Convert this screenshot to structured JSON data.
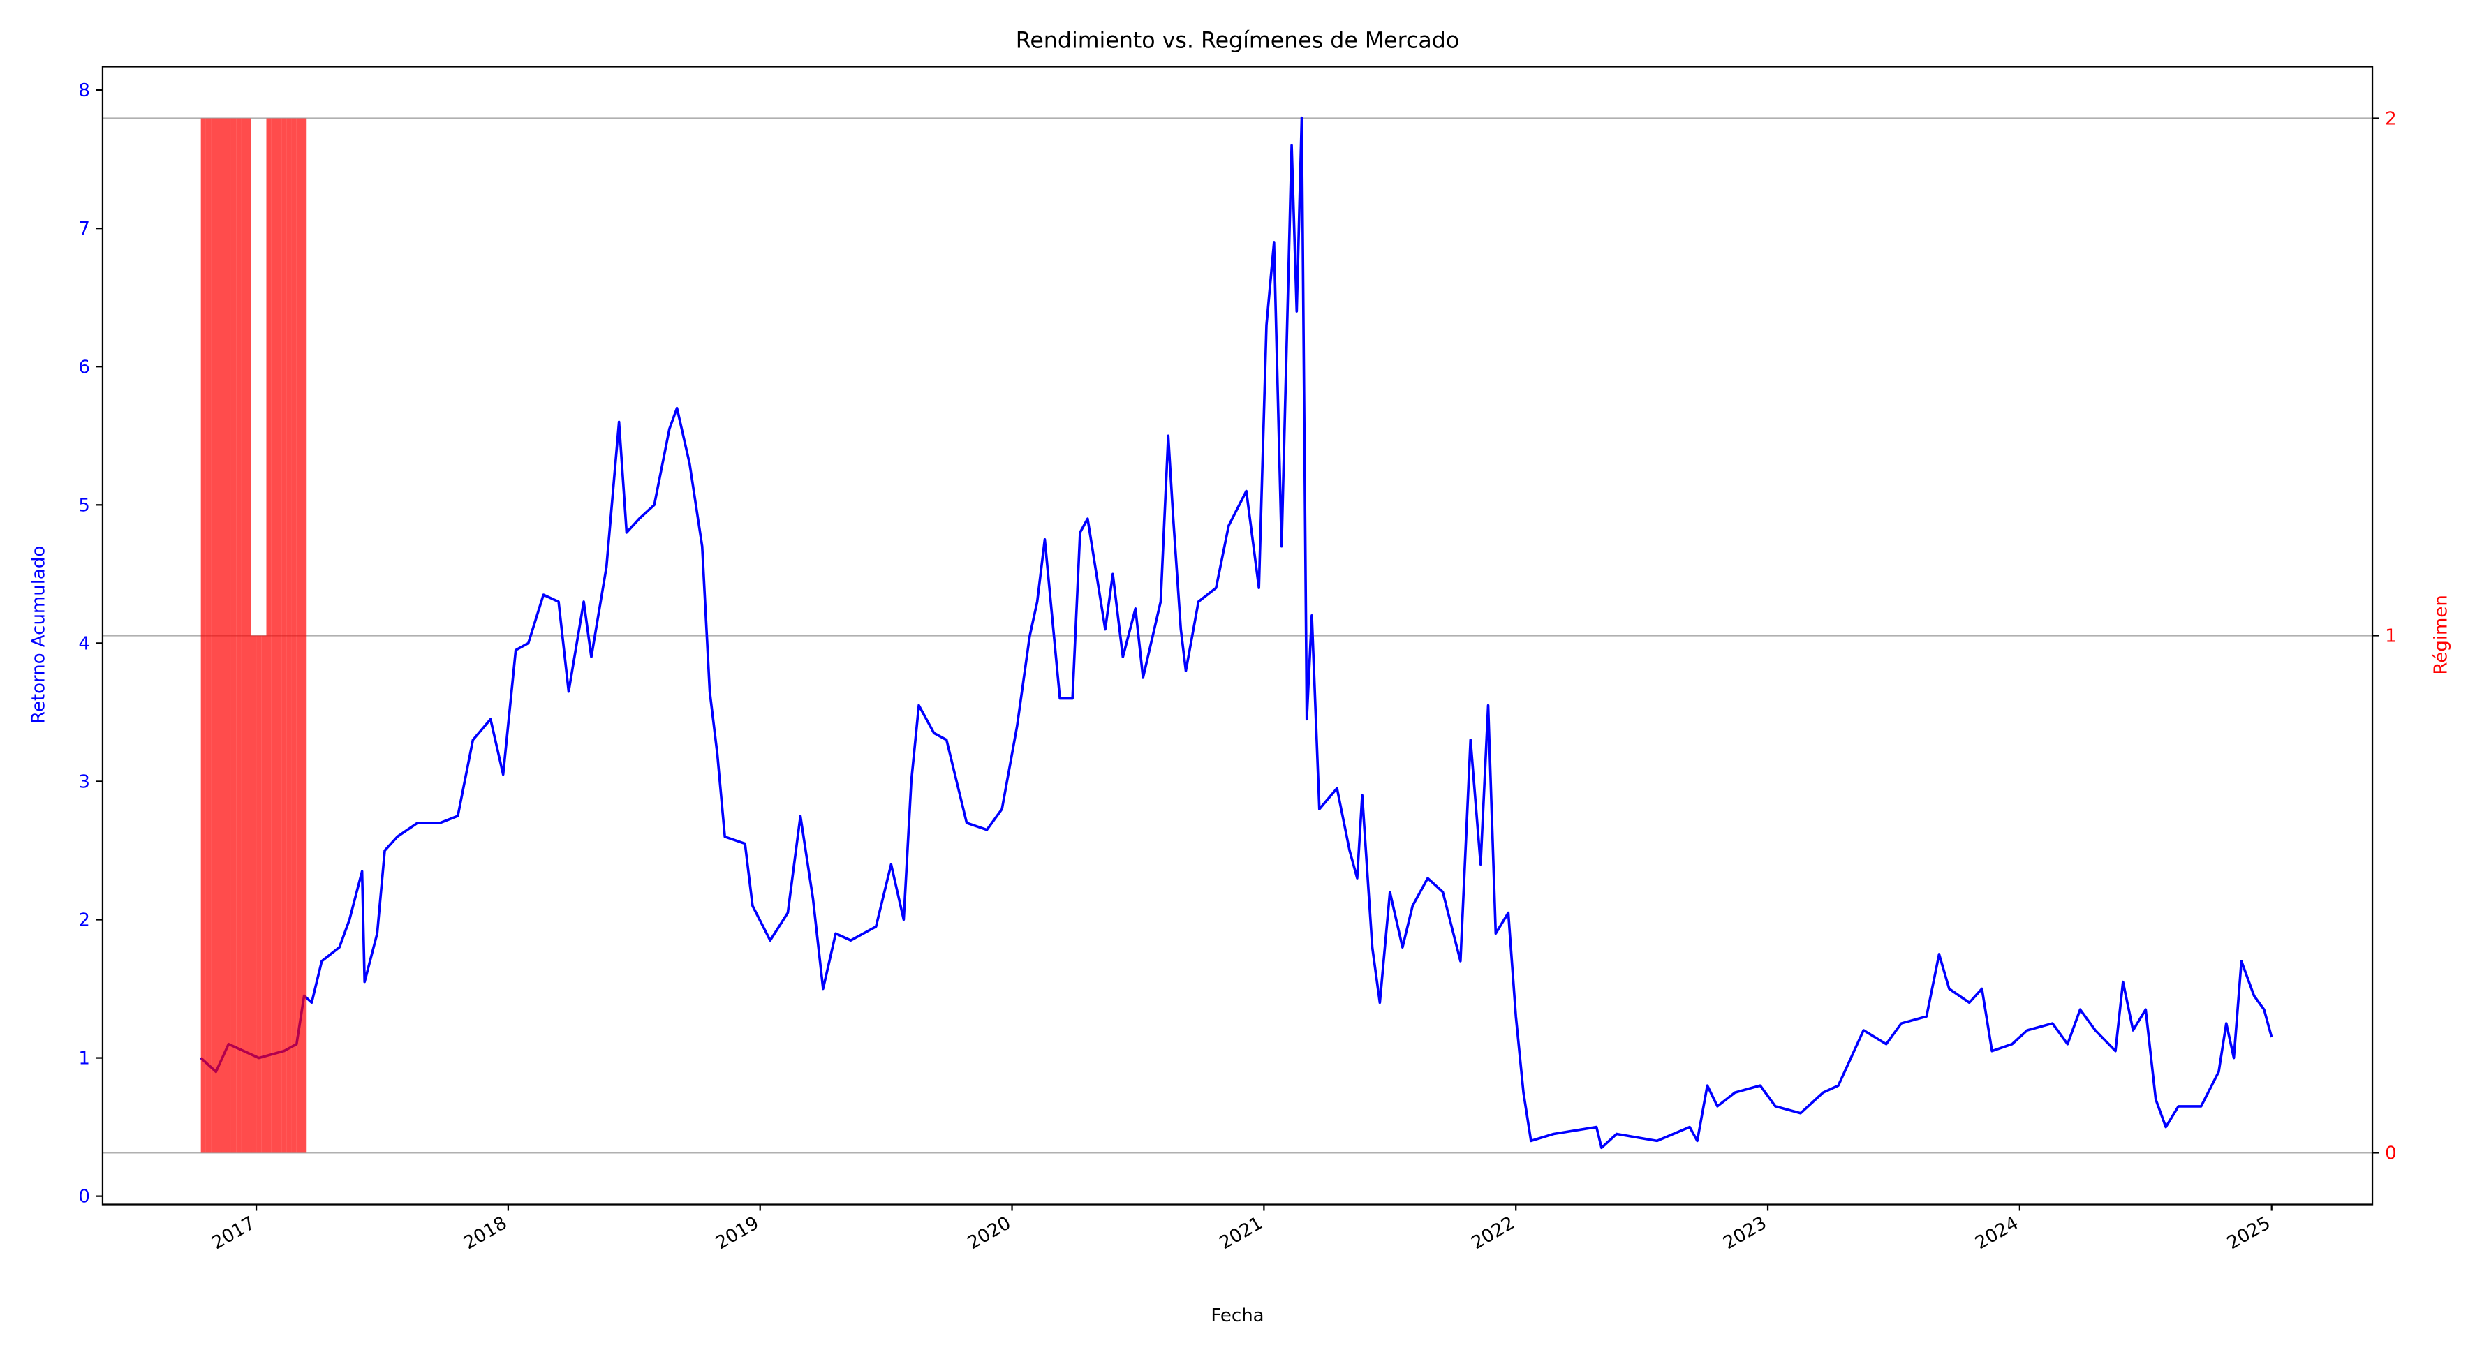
{
  "chart_data": {
    "type": "line",
    "title": "Rendimiento vs. Regímenes de Mercado",
    "x_label": "Fecha",
    "y_label": "Retorno Acumulado",
    "y2_label": "Régimen",
    "xlim": [
      2016.39,
      2025.4
    ],
    "xticks": [
      2017,
      2018,
      2019,
      2020,
      2021,
      2022,
      2023,
      2024,
      2025
    ],
    "ylim": [
      -0.06,
      8.17
    ],
    "yticks": [
      0,
      1,
      2,
      3,
      4,
      5,
      6,
      7,
      8
    ],
    "y2lim": [
      -0.1,
      2.1
    ],
    "y2ticks": [
      0,
      1,
      2
    ],
    "grid": "y2",
    "series": [
      {
        "name": "Retorno Acumulado",
        "type": "line",
        "color": "#0000ff",
        "x": [
          2016.78,
          2016.84,
          2016.89,
          2017.01,
          2017.11,
          2017.16,
          2017.19,
          2017.22,
          2017.26,
          2017.33,
          2017.37,
          2017.42,
          2017.43,
          2017.48,
          2017.51,
          2017.56,
          2017.64,
          2017.73,
          2017.8,
          2017.86,
          2017.93,
          2017.98,
          2018.03,
          2018.08,
          2018.14,
          2018.2,
          2018.24,
          2018.3,
          2018.33,
          2018.39,
          2018.44,
          2018.47,
          2018.52,
          2018.58,
          2018.64,
          2018.67,
          2018.72,
          2018.77,
          2018.8,
          2018.83,
          2018.86,
          2018.94,
          2018.97,
          2019.04,
          2019.11,
          2019.16,
          2019.21,
          2019.25,
          2019.3,
          2019.36,
          2019.46,
          2019.52,
          2019.57,
          2019.6,
          2019.63,
          2019.69,
          2019.74,
          2019.82,
          2019.9,
          2019.96,
          2020.02,
          2020.07,
          2020.1,
          2020.13,
          2020.19,
          2020.24,
          2020.27,
          2020.3,
          2020.37,
          2020.4,
          2020.44,
          2020.49,
          2020.52,
          2020.59,
          2020.62,
          2020.64,
          2020.67,
          2020.69,
          2020.74,
          2020.81,
          2020.86,
          2020.93,
          2020.98,
          2021.01,
          2021.04,
          2021.07,
          2021.11,
          2021.13,
          2021.15,
          2021.17,
          2021.19,
          2021.22,
          2021.29,
          2021.34,
          2021.37,
          2021.39,
          2021.43,
          2021.46,
          2021.5,
          2021.55,
          2021.59,
          2021.65,
          2021.71,
          2021.78,
          2021.82,
          2021.86,
          2021.89,
          2021.92,
          2021.97,
          2022.0,
          2022.03,
          2022.06,
          2022.15,
          2022.32,
          2022.34,
          2022.4,
          2022.56,
          2022.69,
          2022.72,
          2022.76,
          2022.8,
          2022.87,
          2022.97,
          2023.03,
          2023.13,
          2023.22,
          2023.28,
          2023.33,
          2023.38,
          2023.47,
          2023.53,
          2023.63,
          2023.68,
          2023.72,
          2023.8,
          2023.85,
          2023.89,
          2023.97,
          2024.03,
          2024.13,
          2024.19,
          2024.24,
          2024.3,
          2024.38,
          2024.41,
          2024.45,
          2024.5,
          2024.54,
          2024.58,
          2024.63,
          2024.72,
          2024.79,
          2024.82,
          2024.85,
          2024.88,
          2024.93,
          2024.97,
          2025.0
        ],
        "values": [
          1.0,
          0.9,
          1.1,
          1.0,
          1.05,
          1.1,
          1.45,
          1.4,
          1.7,
          1.8,
          2.0,
          2.35,
          1.55,
          1.9,
          2.5,
          2.6,
          2.7,
          2.7,
          2.75,
          3.3,
          3.45,
          3.05,
          3.95,
          4.0,
          4.35,
          4.3,
          3.65,
          4.3,
          3.9,
          4.55,
          5.6,
          4.8,
          4.9,
          5.0,
          5.55,
          5.7,
          5.3,
          4.7,
          3.65,
          3.2,
          2.6,
          2.55,
          2.1,
          1.85,
          2.05,
          2.75,
          2.15,
          1.5,
          1.9,
          1.85,
          1.95,
          2.4,
          2.0,
          3.0,
          3.55,
          3.35,
          3.3,
          2.7,
          2.65,
          2.8,
          3.4,
          4.05,
          4.3,
          4.75,
          3.6,
          3.6,
          4.8,
          4.9,
          4.1,
          4.5,
          3.9,
          4.25,
          3.75,
          4.3,
          5.5,
          4.9,
          4.1,
          3.8,
          4.3,
          4.4,
          4.85,
          5.1,
          4.4,
          6.3,
          6.9,
          4.7,
          7.6,
          6.4,
          7.8,
          3.45,
          4.2,
          2.8,
          2.95,
          2.5,
          2.3,
          2.9,
          1.8,
          1.4,
          2.2,
          1.8,
          2.1,
          2.3,
          2.2,
          1.7,
          3.3,
          2.4,
          3.55,
          1.9,
          2.05,
          1.3,
          0.75,
          0.4,
          0.45,
          0.5,
          0.35,
          0.45,
          0.4,
          0.5,
          0.4,
          0.8,
          0.65,
          0.75,
          0.8,
          0.65,
          0.6,
          0.75,
          0.8,
          1.0,
          1.2,
          1.1,
          1.25,
          1.3,
          1.75,
          1.5,
          1.4,
          1.5,
          1.05,
          1.1,
          1.2,
          1.25,
          1.1,
          1.35,
          1.2,
          1.05,
          1.55,
          1.2,
          1.35,
          0.7,
          0.5,
          0.65,
          0.65,
          0.9,
          1.25,
          1.0,
          1.7,
          1.45,
          1.35,
          1.15
        ]
      },
      {
        "name": "Régimen",
        "type": "bar",
        "axis": "y2",
        "color": "#ff0000",
        "x": [
          2016.78,
          2016.8,
          2016.82,
          2016.84,
          2016.86,
          2016.88,
          2016.9,
          2016.92,
          2016.94,
          2016.96,
          2016.98,
          2017.0,
          2017.02,
          2017.04,
          2017.06,
          2017.08,
          2017.1,
          2017.12,
          2017.14,
          2017.16,
          2017.18
        ],
        "values": [
          2,
          2,
          2,
          2,
          2,
          2,
          2,
          2,
          2,
          2,
          1,
          1,
          1,
          2,
          2,
          2,
          2,
          2,
          2,
          2,
          2
        ]
      }
    ]
  }
}
